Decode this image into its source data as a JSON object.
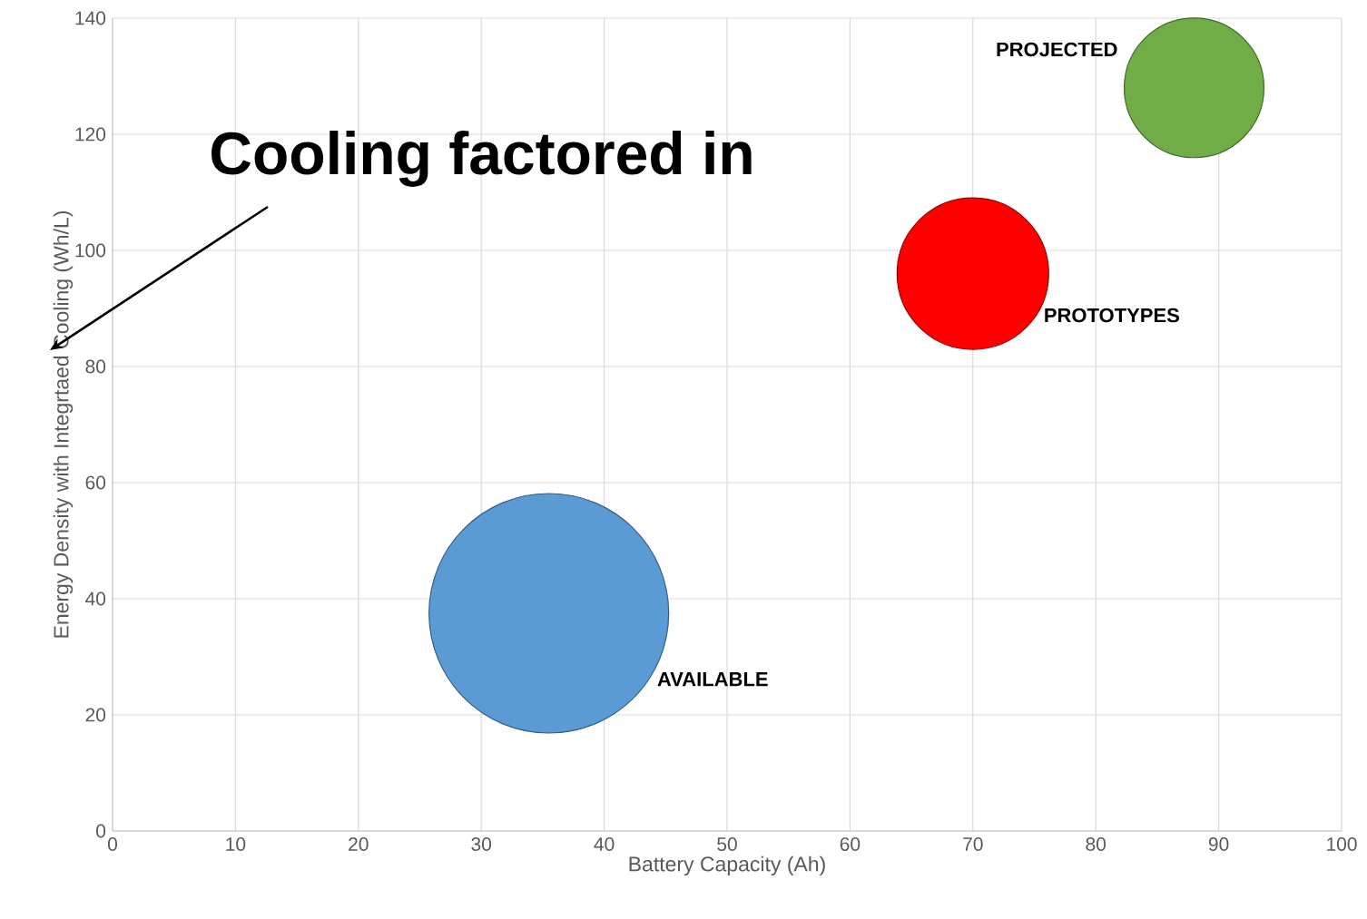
{
  "chart_data": {
    "type": "bubble",
    "xlabel": "Battery Capacity (Ah)",
    "ylabel": "Energy Density with Integrtaed Cooling (Wh/L)",
    "annotations": [
      "Cooling factored in"
    ],
    "xlim": [
      0,
      100
    ],
    "xticks": [
      0,
      10,
      20,
      30,
      40,
      50,
      60,
      70,
      80,
      90,
      100
    ],
    "ylim": [
      0,
      140
    ],
    "yticks": [
      0,
      20,
      40,
      60,
      80,
      100,
      120,
      140
    ],
    "grid": true,
    "series": [
      {
        "name": "AVAILABLE",
        "color": "#5b9bd5",
        "x": [
          35.5
        ],
        "values": [
          37.5
        ],
        "sizes": [
          1
        ]
      },
      {
        "name": "PROTOTYPES",
        "color": "#ff0000",
        "x": [
          70
        ],
        "values": [
          96
        ],
        "sizes": [
          0.4
        ]
      },
      {
        "name": "PROJECTED",
        "color": "#70ad47",
        "x": [
          88
        ],
        "values": [
          128
        ],
        "sizes": [
          0.34
        ]
      }
    ]
  }
}
